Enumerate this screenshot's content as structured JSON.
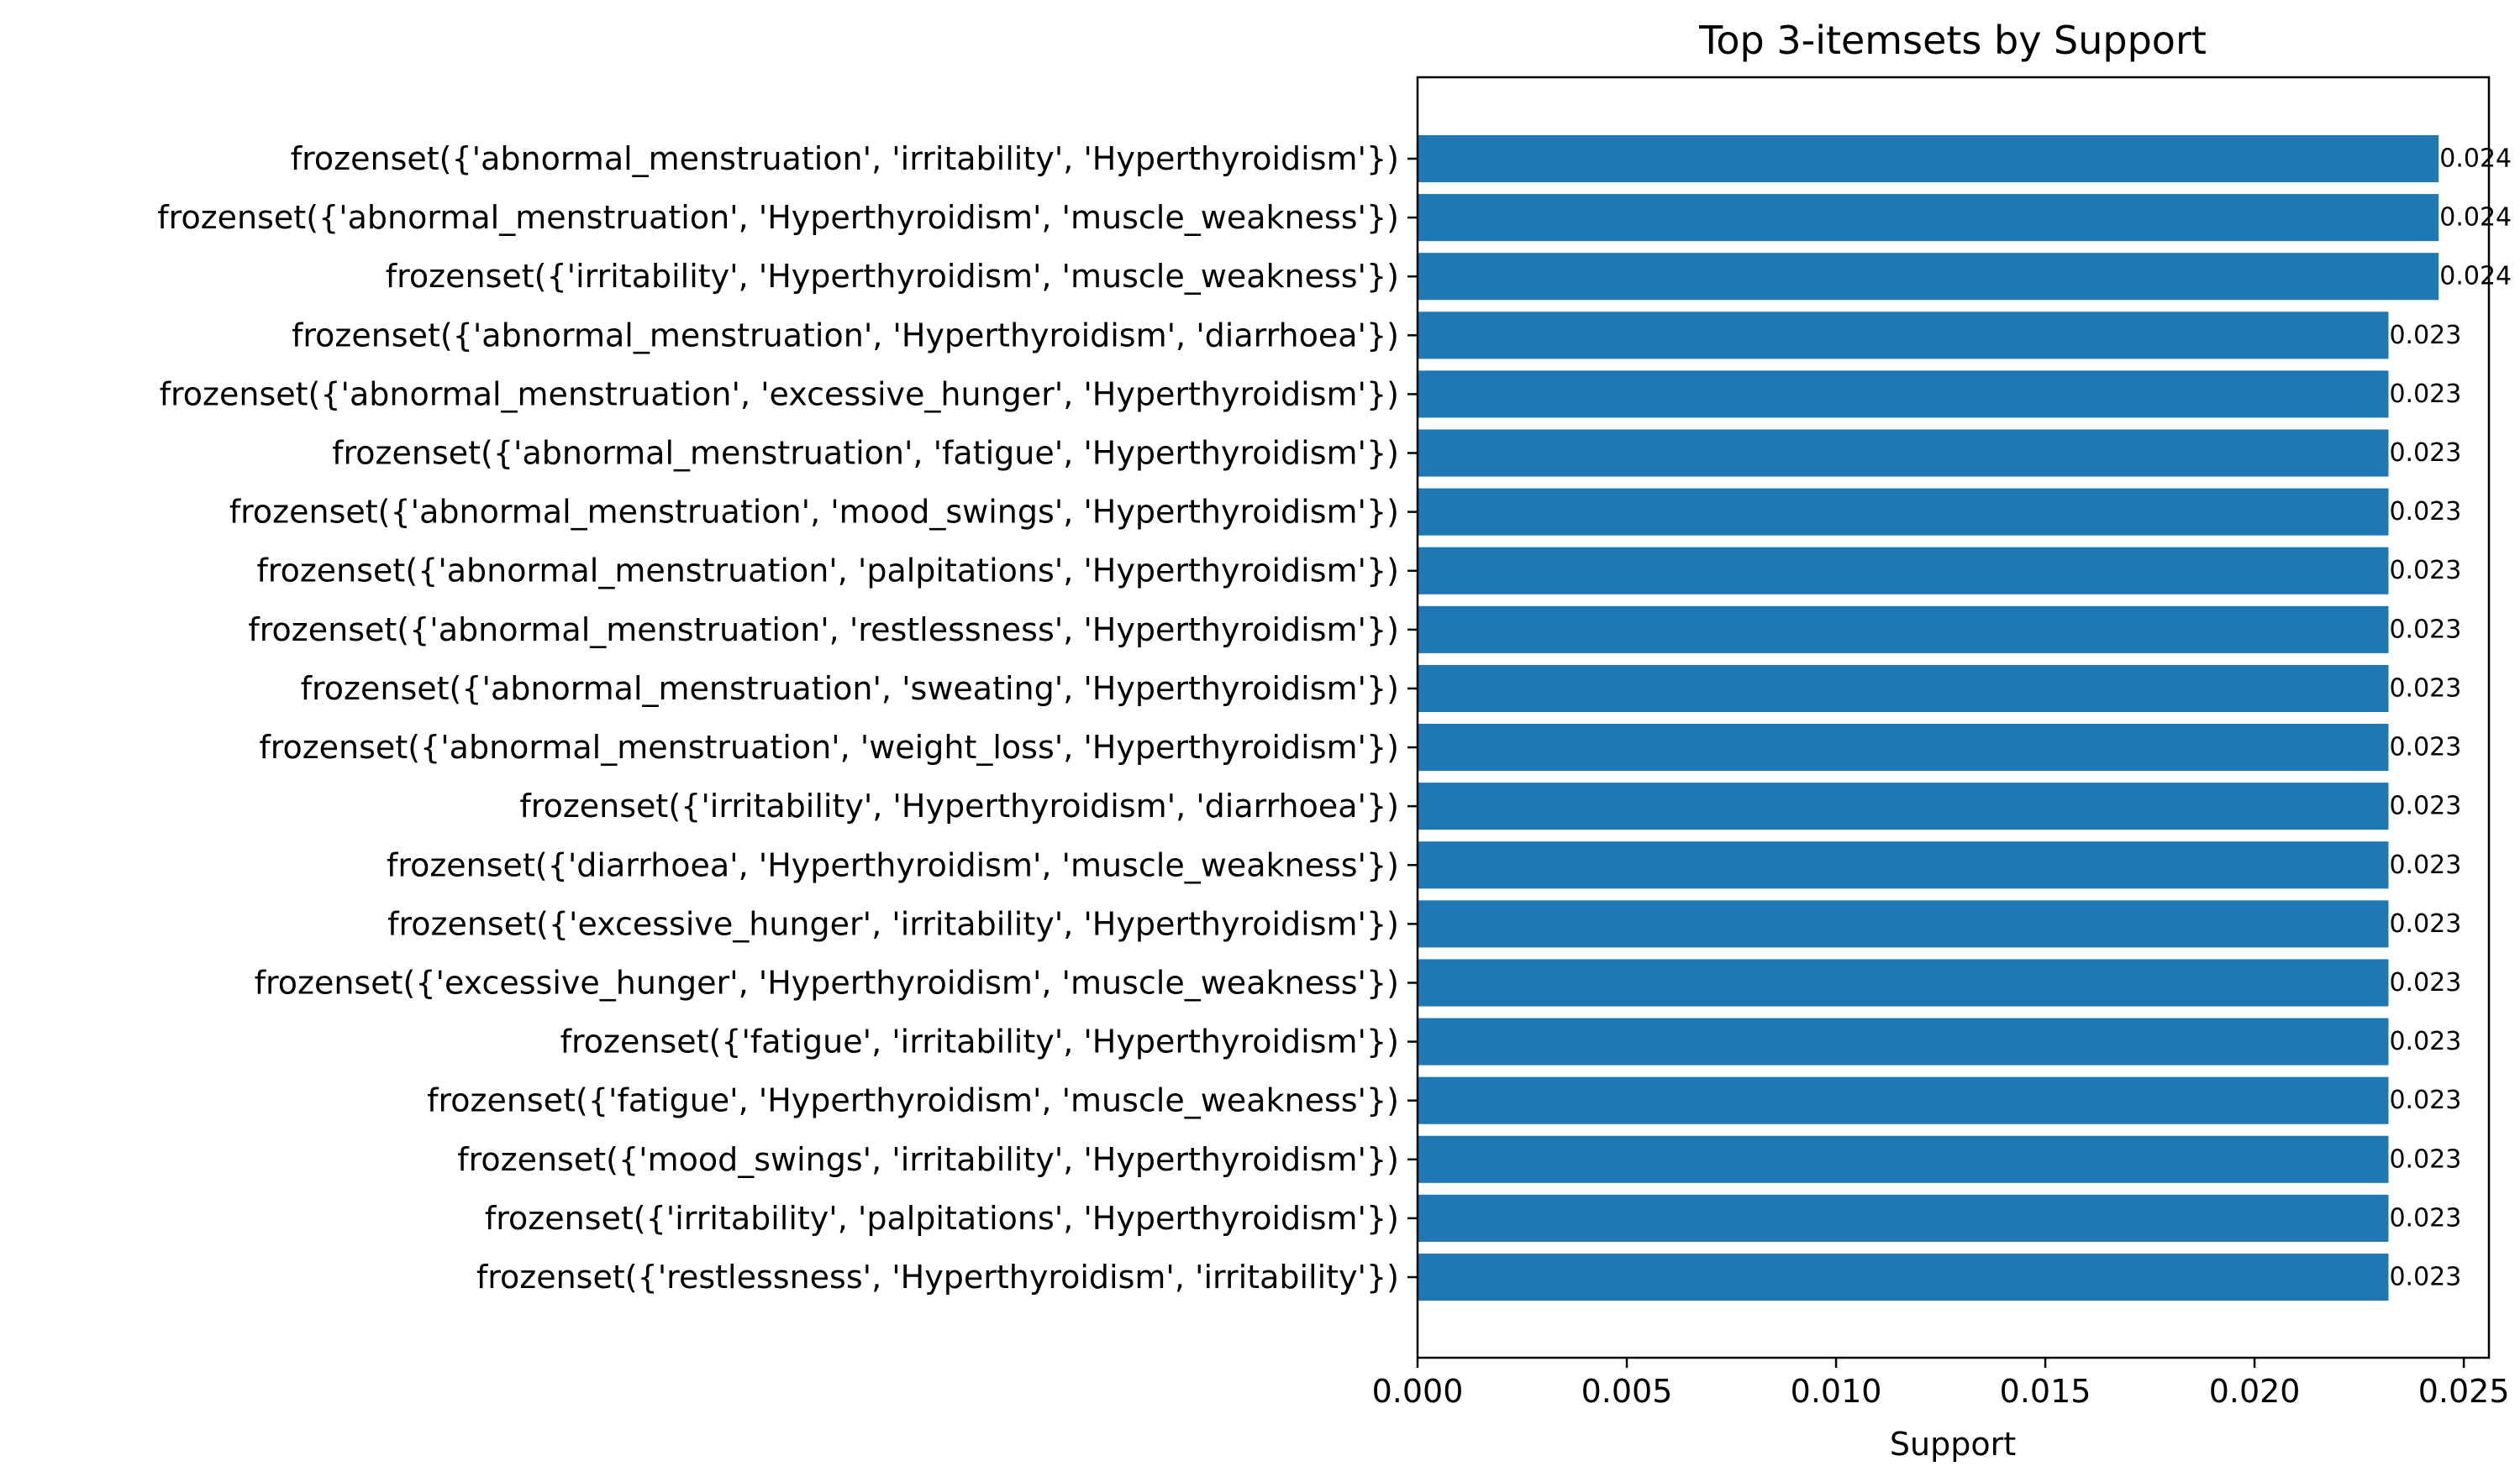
{
  "chart_data": {
    "type": "bar",
    "orientation": "horizontal",
    "title": "Top 3-itemsets by Support",
    "xlabel": "Support",
    "ylabel": "",
    "xlim": [
      0,
      0.0256
    ],
    "xticks": [
      0.0,
      0.005,
      0.01,
      0.015,
      0.02,
      0.025
    ],
    "xtick_labels": [
      "0.000",
      "0.005",
      "0.010",
      "0.015",
      "0.020",
      "0.025"
    ],
    "bar_color": "#1f77b4",
    "grid": false,
    "categories": [
      "frozenset({'abnormal_menstruation', 'irritability', 'Hyperthyroidism'})",
      "frozenset({'abnormal_menstruation', 'Hyperthyroidism', 'muscle_weakness'})",
      "frozenset({'irritability', 'Hyperthyroidism', 'muscle_weakness'})",
      "frozenset({'abnormal_menstruation', 'Hyperthyroidism', 'diarrhoea'})",
      "frozenset({'abnormal_menstruation', 'excessive_hunger', 'Hyperthyroidism'})",
      "frozenset({'abnormal_menstruation', 'fatigue', 'Hyperthyroidism'})",
      "frozenset({'abnormal_menstruation', 'mood_swings', 'Hyperthyroidism'})",
      "frozenset({'abnormal_menstruation', 'palpitations', 'Hyperthyroidism'})",
      "frozenset({'abnormal_menstruation', 'restlessness', 'Hyperthyroidism'})",
      "frozenset({'abnormal_menstruation', 'sweating', 'Hyperthyroidism'})",
      "frozenset({'abnormal_menstruation', 'weight_loss', 'Hyperthyroidism'})",
      "frozenset({'irritability', 'Hyperthyroidism', 'diarrhoea'})",
      "frozenset({'diarrhoea', 'Hyperthyroidism', 'muscle_weakness'})",
      "frozenset({'excessive_hunger', 'irritability', 'Hyperthyroidism'})",
      "frozenset({'excessive_hunger', 'Hyperthyroidism', 'muscle_weakness'})",
      "frozenset({'fatigue', 'irritability', 'Hyperthyroidism'})",
      "frozenset({'fatigue', 'Hyperthyroidism', 'muscle_weakness'})",
      "frozenset({'mood_swings', 'irritability', 'Hyperthyroidism'})",
      "frozenset({'irritability', 'palpitations', 'Hyperthyroidism'})",
      "frozenset({'restlessness', 'Hyperthyroidism', 'irritability'})"
    ],
    "values": [
      0.0244,
      0.0244,
      0.0244,
      0.0232,
      0.0232,
      0.0232,
      0.0232,
      0.0232,
      0.0232,
      0.0232,
      0.0232,
      0.0232,
      0.0232,
      0.0232,
      0.0232,
      0.0232,
      0.0232,
      0.0232,
      0.0232,
      0.0232
    ],
    "value_labels": [
      "0.024",
      "0.024",
      "0.024",
      "0.023",
      "0.023",
      "0.023",
      "0.023",
      "0.023",
      "0.023",
      "0.023",
      "0.023",
      "0.023",
      "0.023",
      "0.023",
      "0.023",
      "0.023",
      "0.023",
      "0.023",
      "0.023",
      "0.023"
    ]
  }
}
